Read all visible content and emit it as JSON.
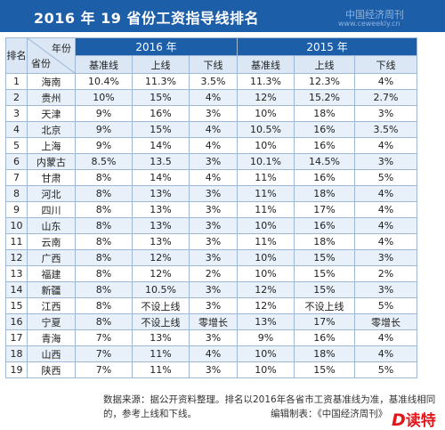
{
  "title": "2016 年 19 省份工资指导线排名",
  "watermark": {
    "line1": "中国经济周刊",
    "line2": "www.ceweekly.cn"
  },
  "table": {
    "rank_header": "排名",
    "diag_top": "年份",
    "diag_bottom": "省份",
    "years": [
      "2016 年",
      "2015 年"
    ],
    "subheaders": [
      "基准线",
      "上线",
      "下线",
      "基准线",
      "上线",
      "下线"
    ],
    "rows": [
      [
        "1",
        "海南",
        "10.4%",
        "11.3%",
        "3.5%",
        "11.3%",
        "12.3%",
        "4%"
      ],
      [
        "2",
        "贵州",
        "10%",
        "15%",
        "4%",
        "12%",
        "15.2%",
        "2.7%"
      ],
      [
        "3",
        "天津",
        "9%",
        "16%",
        "3%",
        "10%",
        "18%",
        "3%"
      ],
      [
        "4",
        "北京",
        "9%",
        "15%",
        "4%",
        "10.5%",
        "16%",
        "3.5%"
      ],
      [
        "5",
        "上海",
        "9%",
        "14%",
        "4%",
        "10%",
        "16%",
        "4%"
      ],
      [
        "6",
        "内蒙古",
        "8.5%",
        "13.5",
        "3%",
        "10.1%",
        "14.5%",
        "3%"
      ],
      [
        "7",
        "甘肃",
        "8%",
        "14%",
        "4%",
        "11%",
        "16%",
        "5%"
      ],
      [
        "8",
        "河北",
        "8%",
        "13%",
        "3%",
        "11%",
        "18%",
        "4%"
      ],
      [
        "9",
        "四川",
        "8%",
        "13%",
        "3%",
        "11%",
        "17%",
        "4%"
      ],
      [
        "10",
        "山东",
        "8%",
        "13%",
        "3%",
        "10%",
        "16%",
        "4%"
      ],
      [
        "11",
        "云南",
        "8%",
        "13%",
        "3%",
        "11%",
        "18%",
        "4%"
      ],
      [
        "12",
        "广西",
        "8%",
        "12%",
        "3%",
        "10%",
        "15%",
        "3%"
      ],
      [
        "13",
        "福建",
        "8%",
        "12%",
        "2%",
        "10%",
        "15%",
        "2%"
      ],
      [
        "14",
        "新疆",
        "8%",
        "10.5%",
        "3%",
        "12%",
        "15%",
        "3%"
      ],
      [
        "15",
        "江西",
        "8%",
        "不设上线",
        "3%",
        "12%",
        "不设上线",
        "5%"
      ],
      [
        "16",
        "宁夏",
        "8%",
        "不设上线",
        "零增长",
        "13%",
        "17%",
        "零增长"
      ],
      [
        "17",
        "青海",
        "7%",
        "13%",
        "3%",
        "9%",
        "16%",
        "4%"
      ],
      [
        "18",
        "山西",
        "7%",
        "11%",
        "4%",
        "10%",
        "18%",
        "4%"
      ],
      [
        "19",
        "陕西",
        "7%",
        "11%",
        "3%",
        "10%",
        "15%",
        "5%"
      ]
    ]
  },
  "source": {
    "note": "数据来源：据公开资料整理。排名以2016年各省市工资基准线为准，基准线相同的，参考上线和下线。",
    "editor": "编辑制表：《中国经济周刊》"
  },
  "logo": {
    "mark": "D",
    "text": "读特"
  },
  "colors": {
    "header_blue": "#1d5ea8",
    "subheader_bg": "#dbe7f4",
    "row_alt_bg": "#e8f0f9",
    "logo_red": "#e3151a"
  }
}
